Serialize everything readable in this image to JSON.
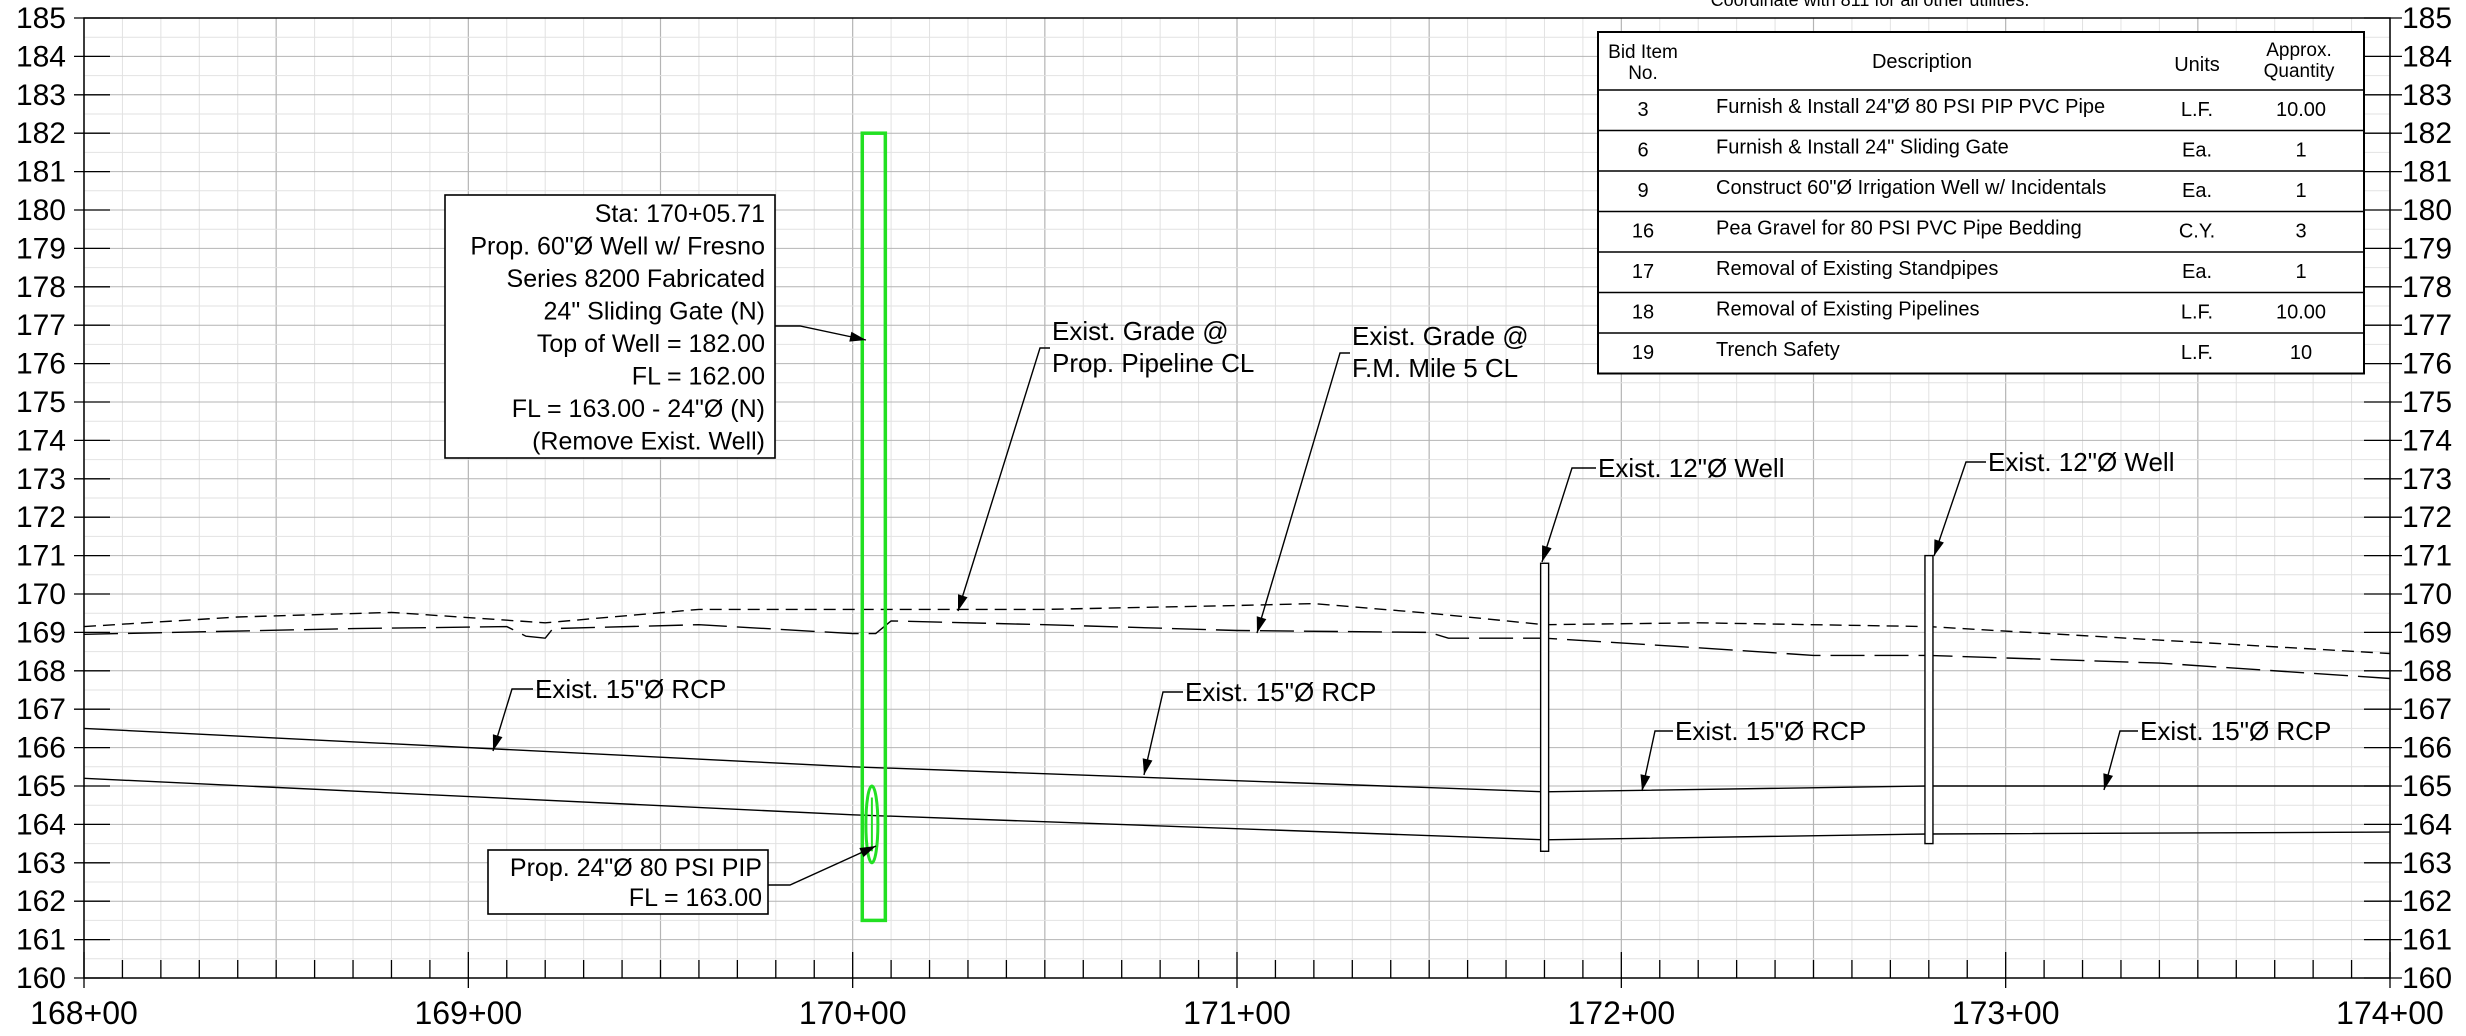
{
  "header_note": "Coordinate with 811 for all other utilities.",
  "y_axis_labels": [
    "160",
    "161",
    "162",
    "163",
    "164",
    "165",
    "166",
    "167",
    "168",
    "169",
    "170",
    "171",
    "172",
    "173",
    "174",
    "175",
    "176",
    "177",
    "178",
    "179",
    "180",
    "181",
    "182",
    "183",
    "184",
    "185"
  ],
  "x_axis_labels": [
    "168+00",
    "169+00",
    "170+00",
    "171+00",
    "172+00",
    "173+00",
    "174+00"
  ],
  "callouts": {
    "well_info": [
      "Sta: 170+05.71",
      "Prop. 60\"Ø Well w/ Fresno",
      "Series 8200 Fabricated",
      "24\" Sliding Gate (N)",
      "Top of Well = 182.00",
      "FL = 162.00",
      "FL = 163.00 - 24\"Ø (N)",
      "(Remove Exist. Well)"
    ],
    "pipe_info": [
      "Prop. 24\"Ø 80 PSI PIP",
      "FL = 163.00"
    ],
    "grade_pipeline": [
      "Exist. Grade @",
      "Prop. Pipeline CL"
    ],
    "grade_fm": [
      "Exist. Grade @",
      "F.M. Mile 5 CL"
    ],
    "well_12_a": "Exist. 12\"Ø Well",
    "well_12_b": "Exist. 12\"Ø Well",
    "rcp_1": "Exist. 15\"Ø RCP",
    "rcp_2": "Exist. 15\"Ø RCP",
    "rcp_3": "Exist. 15\"Ø RCP",
    "rcp_4": "Exist. 15\"Ø RCP"
  },
  "bid_table": {
    "headers": {
      "item": [
        "Bid Item",
        "No."
      ],
      "description": "Description",
      "units": "Units",
      "quantity": [
        "Approx.",
        "Quantity"
      ]
    },
    "rows": [
      {
        "item": "3",
        "description": "Furnish & Install 24\"Ø 80 PSI PIP PVC Pipe",
        "units": "L.F.",
        "quantity": "10.00"
      },
      {
        "item": "6",
        "description": "Furnish & Install 24\" Sliding Gate",
        "units": "Ea.",
        "quantity": "1"
      },
      {
        "item": "9",
        "description": "Construct 60\"Ø Irrigation Well w/ Incidentals",
        "units": "Ea.",
        "quantity": "1"
      },
      {
        "item": "16",
        "description": "Pea Gravel for 80 PSI PVC Pipe Bedding",
        "units": "C.Y.",
        "quantity": "3"
      },
      {
        "item": "17",
        "description": "Removal of Existing Standpipes",
        "units": "Ea.",
        "quantity": "1"
      },
      {
        "item": "18",
        "description": "Removal of Existing Pipelines",
        "units": "L.F.",
        "quantity": "10.00"
      },
      {
        "item": "19",
        "description": "Trench Safety",
        "units": "L.F.",
        "quantity": "10"
      }
    ]
  },
  "colors": {
    "proposed": "#22e022",
    "lines": "#000000",
    "grid_major": "#b4b4b4",
    "grid_minor": "#e2e2e2"
  }
}
